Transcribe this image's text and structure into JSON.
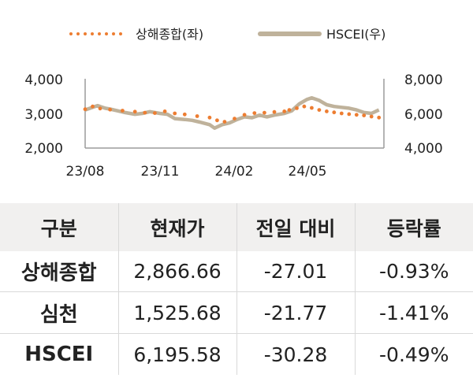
{
  "chart_data": {
    "type": "line",
    "legend": {
      "placement": "top",
      "items": [
        {
          "name": "상해종합(좌)",
          "style": "dotted",
          "color": "#ed7d31"
        },
        {
          "name": "HSCEI(우)",
          "style": "solid",
          "color": "#bfb29b"
        }
      ]
    },
    "x_ticks": [
      "23/08",
      "23/11",
      "24/02",
      "24/05"
    ],
    "y_left": {
      "ticks": [
        "2,000",
        "3,000",
        "4,000"
      ],
      "range": [
        2000,
        4000
      ]
    },
    "y_right": {
      "ticks": [
        "4,000",
        "6,000",
        "8,000"
      ],
      "range": [
        4000,
        8000
      ]
    },
    "x_months": [
      "2023-08",
      "2023-09",
      "2023-10",
      "2023-11",
      "2023-12",
      "2024-01",
      "2024-02",
      "2024-03",
      "2024-04",
      "2024-05",
      "2024-06",
      "2024-07",
      "2024-08"
    ],
    "series": [
      {
        "name": "상해종합(좌)",
        "axis": "left",
        "color": "#ed7d31",
        "x": [
          0,
          0.3,
          0.6,
          1.0,
          1.5,
          2.0,
          2.4,
          2.8,
          3.2,
          3.6,
          4.0,
          4.5,
          5.0,
          5.3,
          5.6,
          6.0,
          6.4,
          6.8,
          7.2,
          7.6,
          8.0,
          8.2,
          8.5,
          8.8,
          9.1,
          9.4,
          9.7,
          10.0,
          10.3,
          10.6,
          10.9,
          11.2,
          11.5,
          11.8
        ],
        "y": [
          3120,
          3200,
          3140,
          3110,
          3080,
          3050,
          3020,
          3010,
          3060,
          3000,
          2970,
          2920,
          2880,
          2800,
          2760,
          2850,
          2960,
          3010,
          3020,
          3040,
          3060,
          3100,
          3150,
          3200,
          3160,
          3100,
          3060,
          3030,
          3000,
          2980,
          2960,
          2940,
          2910,
          2880
        ]
      },
      {
        "name": "HSCEI(우)",
        "axis": "right",
        "color": "#bfb29b",
        "x": [
          0,
          0.3,
          0.5,
          0.8,
          1.0,
          1.3,
          1.6,
          2.0,
          2.3,
          2.6,
          3.0,
          3.3,
          3.6,
          4.0,
          4.3,
          4.6,
          5.0,
          5.2,
          5.5,
          5.8,
          6.1,
          6.4,
          6.7,
          7.0,
          7.3,
          7.6,
          8.0,
          8.3,
          8.6,
          8.9,
          9.1,
          9.4,
          9.7,
          10.0,
          10.3,
          10.6,
          10.9,
          11.2,
          11.5,
          11.8
        ],
        "y": [
          6200,
          6350,
          6450,
          6300,
          6250,
          6150,
          6050,
          5950,
          6000,
          6100,
          6000,
          5950,
          5700,
          5650,
          5600,
          5500,
          5350,
          5150,
          5350,
          5450,
          5650,
          5800,
          5750,
          5900,
          5800,
          5900,
          6000,
          6150,
          6550,
          6800,
          6900,
          6750,
          6500,
          6400,
          6350,
          6300,
          6200,
          6050,
          6000,
          6200
        ]
      }
    ]
  },
  "table": {
    "headers": [
      "구분",
      "현재가",
      "전일 대비",
      "등락률"
    ],
    "rows": [
      {
        "name": "상해종합",
        "price": "2,866.66",
        "change": "-27.01",
        "pct": "-0.93%"
      },
      {
        "name": "심천",
        "price": "1,525.68",
        "change": "-21.77",
        "pct": "-1.41%"
      },
      {
        "name": "HSCEI",
        "price": "6,195.58",
        "change": "-30.28",
        "pct": "-0.49%"
      }
    ]
  }
}
